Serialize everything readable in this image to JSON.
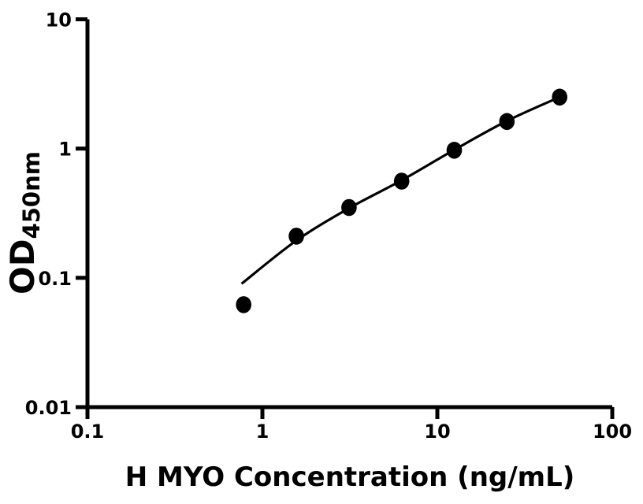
{
  "figure": {
    "background": "#ffffff",
    "ink": "#000000"
  },
  "chart_data": {
    "type": "scatter",
    "title": "",
    "xlabel": "H MYO Concentration (ng/mL)",
    "ylabel_main": "OD",
    "ylabel_sub": "450nm",
    "x_scale": "log",
    "y_scale": "log",
    "xlim": [
      0.1,
      100
    ],
    "ylim": [
      0.01,
      10
    ],
    "grid": false,
    "legend": "none",
    "x_ticks": [
      {
        "v": 0.1,
        "label": "0.1"
      },
      {
        "v": 1,
        "label": "1"
      },
      {
        "v": 10,
        "label": "10"
      },
      {
        "v": 100,
        "label": "100"
      }
    ],
    "y_ticks": [
      {
        "v": 0.01,
        "label": "0.01"
      },
      {
        "v": 0.1,
        "label": "0.1"
      },
      {
        "v": 1,
        "label": "1"
      },
      {
        "v": 10,
        "label": "10"
      }
    ],
    "series": [
      {
        "name": "standard-points",
        "type": "scatter",
        "marker": "filled-circle",
        "color": "#000000",
        "points": [
          {
            "x": 0.781,
            "od": 0.062
          },
          {
            "x": 1.563,
            "od": 0.21
          },
          {
            "x": 3.125,
            "od": 0.35
          },
          {
            "x": 6.25,
            "od": 0.56
          },
          {
            "x": 12.5,
            "od": 0.97
          },
          {
            "x": 25,
            "od": 1.62
          },
          {
            "x": 50,
            "od": 2.5
          }
        ]
      },
      {
        "name": "fit-curve",
        "type": "line",
        "color": "#000000",
        "points": [
          {
            "x": 0.76,
            "od": 0.09
          },
          {
            "x": 1.55,
            "od": 0.193
          },
          {
            "x": 3.09,
            "od": 0.343
          },
          {
            "x": 6.2,
            "od": 0.565
          },
          {
            "x": 12.45,
            "od": 0.975
          },
          {
            "x": 25,
            "od": 1.635
          },
          {
            "x": 50,
            "od": 2.5
          }
        ]
      }
    ]
  }
}
